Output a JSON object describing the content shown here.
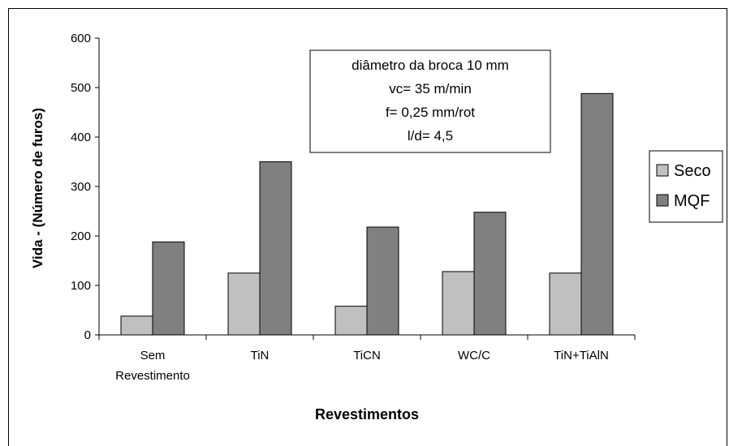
{
  "chart_data": {
    "type": "bar",
    "categories": [
      "Sem Revestimento",
      "TiN",
      "TiCN",
      "WC/C",
      "TiN+TiAlN"
    ],
    "category_labels": [
      [
        "Sem",
        "Revestimento"
      ],
      [
        "TiN"
      ],
      [
        "TiCN"
      ],
      [
        "WC/C"
      ],
      [
        "TiN+TiAlN"
      ]
    ],
    "series": [
      {
        "name": "Seco",
        "values": [
          38,
          125,
          58,
          128,
          125
        ],
        "color": "#c0c0c0"
      },
      {
        "name": "MQF",
        "values": [
          188,
          350,
          218,
          248,
          488
        ],
        "color": "#808080"
      }
    ],
    "title": "",
    "xlabel": "Revestimentos",
    "ylabel": "Vida - (Número de furos)",
    "ylim": [
      0,
      600
    ],
    "yticks": [
      0,
      100,
      200,
      300,
      400,
      500,
      600
    ],
    "grid": false,
    "legend_position": "right",
    "annotation": {
      "lines": [
        "diâmetro da broca 10 mm",
        "vc= 35 m/min",
        "f= 0,25 mm/rot",
        "l/d= 4,5"
      ]
    }
  }
}
